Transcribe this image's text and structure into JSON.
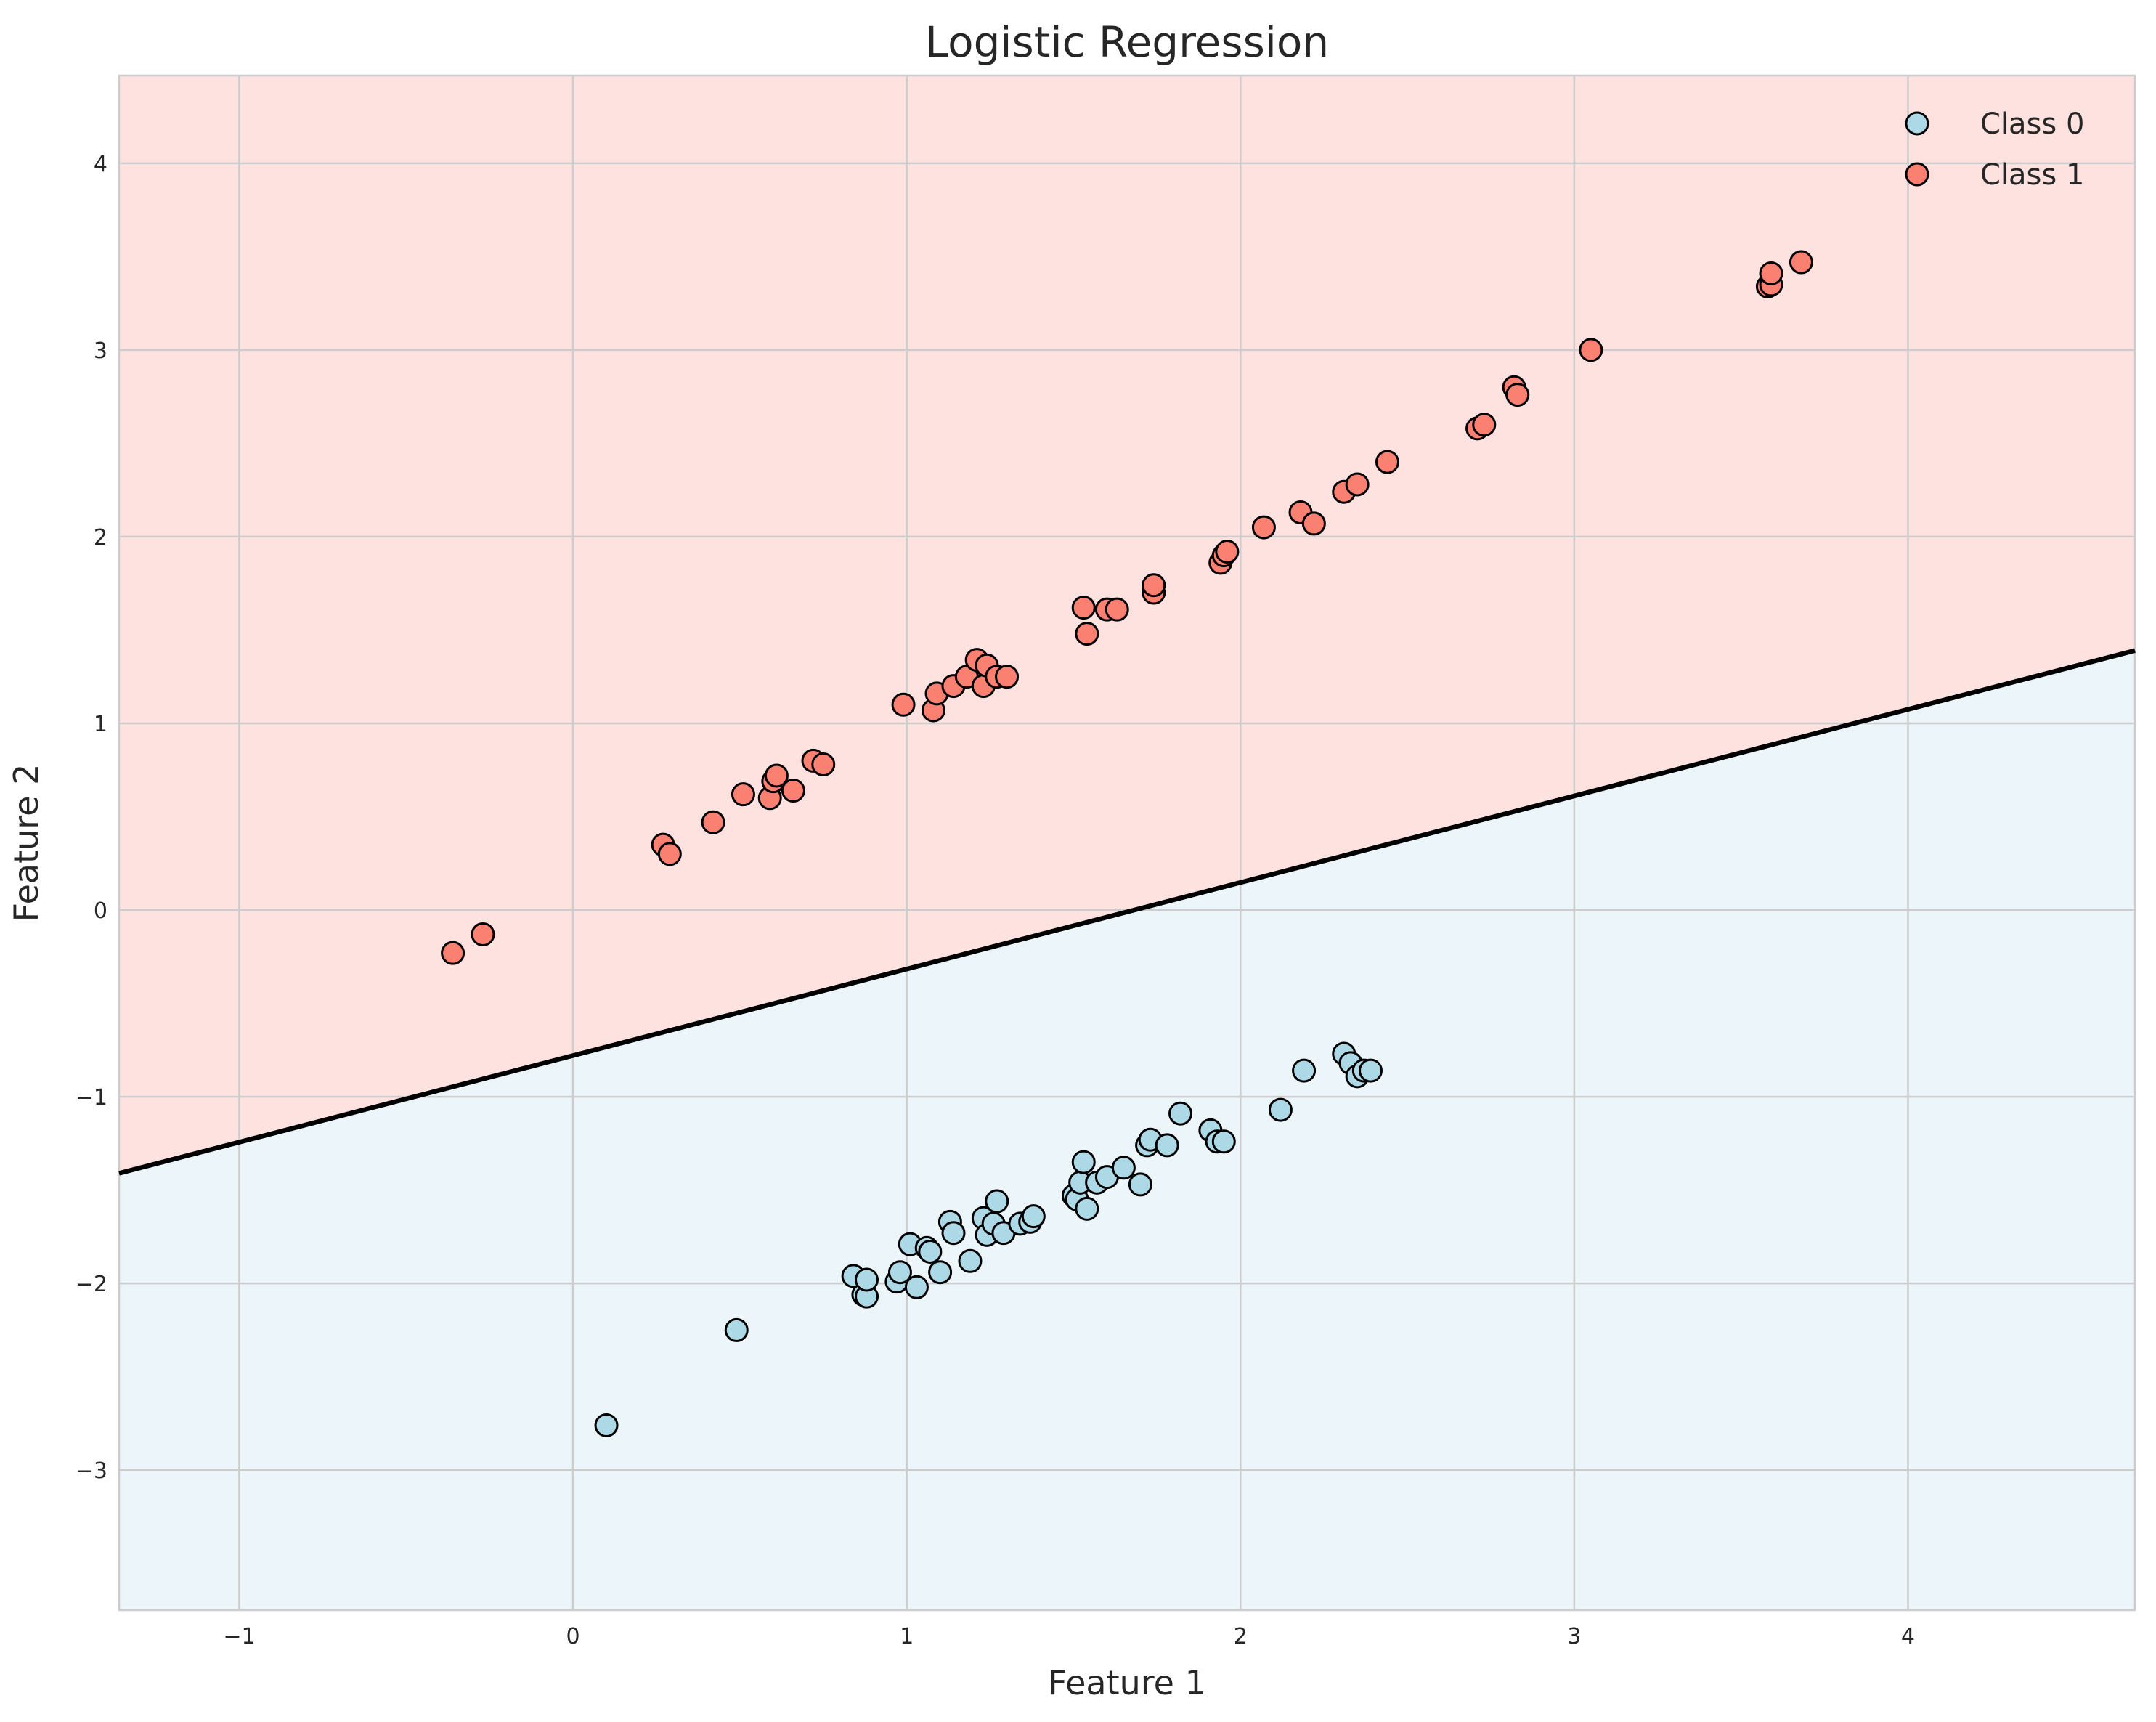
{
  "chart_data": {
    "type": "scatter",
    "title": "Logistic Regression",
    "xlabel": "Feature 1",
    "ylabel": "Feature 2",
    "xlim": [
      -1.36,
      4.68
    ],
    "ylim": [
      -3.75,
      4.47
    ],
    "xticks": [
      -1,
      0,
      1,
      2,
      3,
      4
    ],
    "yticks": [
      -3,
      -2,
      -1,
      0,
      1,
      2,
      3,
      4
    ],
    "xtick_labels": [
      "−1",
      "0",
      "1",
      "2",
      "3",
      "4"
    ],
    "ytick_labels": [
      "−3",
      "−2",
      "−1",
      "0",
      "1",
      "2",
      "3",
      "4"
    ],
    "grid": true,
    "legend_position": "top-right",
    "decision_boundary": {
      "x": [
        -1.36,
        4.68
      ],
      "y": [
        -1.41,
        1.39
      ],
      "color": "#000000"
    },
    "regions": {
      "class0_color": "#ecf5f9",
      "class1_color": "#fde2e0"
    },
    "series": [
      {
        "name": "Class 0",
        "color": "#add8e6",
        "x": [
          0.1,
          0.49,
          0.84,
          0.87,
          0.88,
          0.88,
          0.97,
          0.98,
          1.01,
          1.03,
          1.06,
          1.07,
          1.1,
          1.13,
          1.14,
          1.19,
          1.23,
          1.24,
          1.26,
          1.27,
          1.29,
          1.34,
          1.37,
          1.38,
          1.5,
          1.51,
          1.52,
          1.53,
          1.54,
          1.57,
          1.6,
          1.65,
          1.7,
          1.72,
          1.73,
          1.78,
          1.82,
          1.91,
          1.93,
          1.95,
          2.12,
          2.19,
          2.31,
          2.33,
          2.35,
          2.37,
          2.39
        ],
        "y": [
          -2.76,
          -2.25,
          -1.96,
          -2.06,
          -2.07,
          -1.98,
          -1.99,
          -1.94,
          -1.79,
          -2.02,
          -1.81,
          -1.83,
          -1.94,
          -1.67,
          -1.73,
          -1.88,
          -1.65,
          -1.74,
          -1.68,
          -1.56,
          -1.73,
          -1.68,
          -1.67,
          -1.64,
          -1.53,
          -1.55,
          -1.46,
          -1.35,
          -1.6,
          -1.46,
          -1.43,
          -1.38,
          -1.47,
          -1.26,
          -1.23,
          -1.26,
          -1.09,
          -1.18,
          -1.24,
          -1.24,
          -1.07,
          -0.86,
          -0.77,
          -0.82,
          -0.89,
          -0.86,
          -0.86
        ]
      },
      {
        "name": "Class 1",
        "color": "#fa8072",
        "x": [
          -0.36,
          -0.27,
          0.27,
          0.29,
          0.42,
          0.51,
          0.59,
          0.6,
          0.61,
          0.66,
          0.72,
          0.75,
          0.99,
          1.08,
          1.09,
          1.14,
          1.18,
          1.21,
          1.23,
          1.24,
          1.27,
          1.3,
          1.53,
          1.54,
          1.6,
          1.63,
          1.74,
          1.74,
          1.94,
          1.95,
          1.96,
          2.07,
          2.18,
          2.22,
          2.31,
          2.35,
          2.44,
          2.71,
          2.73,
          2.82,
          2.83,
          3.05,
          3.58,
          3.59,
          3.59,
          3.68
        ],
        "y": [
          -0.23,
          -0.13,
          0.35,
          0.3,
          0.47,
          0.62,
          0.6,
          0.69,
          0.72,
          0.64,
          0.8,
          0.78,
          1.1,
          1.07,
          1.16,
          1.2,
          1.25,
          1.34,
          1.2,
          1.31,
          1.25,
          1.25,
          1.62,
          1.48,
          1.61,
          1.61,
          1.7,
          1.74,
          1.86,
          1.9,
          1.92,
          2.05,
          2.13,
          2.07,
          2.24,
          2.28,
          2.4,
          2.58,
          2.6,
          2.8,
          2.76,
          3.0,
          3.34,
          3.35,
          3.41,
          3.47
        ]
      }
    ]
  }
}
